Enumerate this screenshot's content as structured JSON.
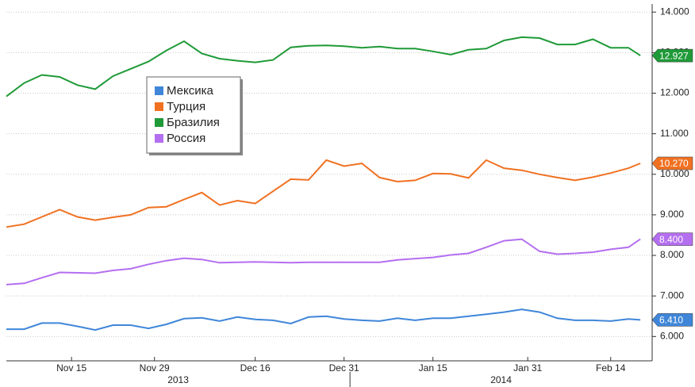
{
  "chart_data": {
    "type": "line",
    "xlim": [
      "2013-11-04",
      "2014-02-21"
    ],
    "ylim": [
      5.4,
      14.2
    ],
    "yticks": [
      {
        "value": 6,
        "label": "6.000"
      },
      {
        "value": 7,
        "label": "7.000"
      },
      {
        "value": 8,
        "label": "8.000"
      },
      {
        "value": 9,
        "label": "9.000"
      },
      {
        "value": 10,
        "label": "10.000"
      },
      {
        "value": 11,
        "label": "11.000"
      },
      {
        "value": 12,
        "label": "12.000"
      },
      {
        "value": 13,
        "label": "13.000"
      },
      {
        "value": 14,
        "label": "14.000"
      }
    ],
    "xticks": [
      {
        "value": "2013-11-15",
        "label": "Nov 15"
      },
      {
        "value": "2013-11-29",
        "label": "Nov 29"
      },
      {
        "value": "2013-12-16",
        "label": "Dec 16"
      },
      {
        "value": "2013-12-31",
        "label": "Dec 31"
      },
      {
        "value": "2014-01-15",
        "label": "Jan 15"
      },
      {
        "value": "2014-01-31",
        "label": "Jan 31"
      },
      {
        "value": "2014-02-14",
        "label": "Feb 14"
      }
    ],
    "x_groups": [
      {
        "label": "2013"
      },
      {
        "label": "2014"
      }
    ],
    "grid": true,
    "legend": "upper left",
    "x": [
      "2013-11-04",
      "2013-11-07",
      "2013-11-10",
      "2013-11-13",
      "2013-11-16",
      "2013-11-19",
      "2013-11-22",
      "2013-11-25",
      "2013-11-28",
      "2013-12-01",
      "2013-12-04",
      "2013-12-07",
      "2013-12-10",
      "2013-12-13",
      "2013-12-16",
      "2013-12-19",
      "2013-12-22",
      "2013-12-25",
      "2013-12-28",
      "2013-12-31",
      "2014-01-03",
      "2014-01-06",
      "2014-01-09",
      "2014-01-12",
      "2014-01-15",
      "2014-01-18",
      "2014-01-21",
      "2014-01-24",
      "2014-01-27",
      "2014-01-30",
      "2014-02-02",
      "2014-02-05",
      "2014-02-08",
      "2014-02-11",
      "2014-02-14",
      "2014-02-17",
      "2014-02-19"
    ],
    "series": [
      {
        "name": "Мексика",
        "color": "#3f86d9",
        "values": [
          6.18,
          6.18,
          6.33,
          6.33,
          6.25,
          6.16,
          6.28,
          6.28,
          6.2,
          6.3,
          6.44,
          6.46,
          6.38,
          6.48,
          6.42,
          6.4,
          6.32,
          6.48,
          6.5,
          6.43,
          6.4,
          6.38,
          6.45,
          6.4,
          6.45,
          6.45,
          6.5,
          6.55,
          6.6,
          6.67,
          6.6,
          6.45,
          6.4,
          6.4,
          6.38,
          6.43,
          6.41
        ],
        "value_labels": [
          null,
          null,
          null,
          null,
          null,
          null,
          null,
          null,
          null,
          null,
          null,
          null,
          null,
          null,
          null,
          null,
          null,
          null,
          null,
          null,
          null,
          null,
          null,
          null,
          null,
          null,
          null,
          null,
          null,
          null,
          null,
          null,
          null,
          null,
          null,
          null,
          "6.410"
        ]
      },
      {
        "name": "Турция",
        "color": "#f07122",
        "values": [
          8.7,
          8.77,
          8.95,
          9.13,
          8.95,
          8.87,
          8.94,
          9.0,
          9.18,
          9.2,
          9.38,
          9.55,
          9.24,
          9.35,
          9.28,
          9.58,
          9.88,
          9.86,
          10.35,
          10.2,
          10.27,
          9.92,
          9.82,
          9.85,
          10.02,
          10.01,
          9.91,
          10.35,
          10.15,
          10.1,
          10.0,
          9.92,
          9.85,
          9.93,
          10.03,
          10.15,
          10.27
        ],
        "value_labels": [
          null,
          null,
          null,
          null,
          null,
          null,
          null,
          null,
          null,
          null,
          null,
          null,
          null,
          null,
          null,
          null,
          null,
          null,
          null,
          null,
          null,
          null,
          null,
          null,
          null,
          null,
          null,
          null,
          null,
          null,
          null,
          null,
          null,
          null,
          null,
          null,
          "10.270"
        ]
      },
      {
        "name": "Бразилия",
        "color": "#1f9a38",
        "values": [
          11.92,
          12.25,
          12.45,
          12.4,
          12.2,
          12.1,
          12.42,
          12.6,
          12.78,
          13.05,
          13.28,
          12.98,
          12.85,
          12.8,
          12.76,
          12.82,
          13.13,
          13.17,
          13.18,
          13.16,
          13.12,
          13.15,
          13.1,
          13.1,
          13.03,
          12.95,
          13.07,
          13.1,
          13.3,
          13.38,
          13.36,
          13.2,
          13.2,
          13.33,
          13.12,
          13.12,
          12.927
        ],
        "value_labels": [
          null,
          null,
          null,
          null,
          null,
          null,
          null,
          null,
          null,
          null,
          null,
          null,
          null,
          null,
          null,
          null,
          null,
          null,
          null,
          null,
          null,
          null,
          null,
          null,
          null,
          null,
          null,
          null,
          null,
          null,
          null,
          null,
          null,
          null,
          null,
          null,
          "12.927"
        ]
      },
      {
        "name": "Россия",
        "color": "#b46ef0",
        "values": [
          7.28,
          7.31,
          7.45,
          7.58,
          7.57,
          7.56,
          7.63,
          7.67,
          7.78,
          7.87,
          7.93,
          7.9,
          7.82,
          7.83,
          7.84,
          7.83,
          7.82,
          7.83,
          7.83,
          7.83,
          7.83,
          7.83,
          7.89,
          7.92,
          7.95,
          8.01,
          8.05,
          8.2,
          8.36,
          8.4,
          8.1,
          8.03,
          8.05,
          8.08,
          8.15,
          8.2,
          8.4
        ],
        "value_labels": [
          null,
          null,
          null,
          null,
          null,
          null,
          null,
          null,
          null,
          null,
          null,
          null,
          null,
          null,
          null,
          null,
          null,
          null,
          null,
          null,
          null,
          null,
          null,
          null,
          null,
          null,
          null,
          null,
          null,
          null,
          null,
          null,
          null,
          null,
          null,
          null,
          "8.400"
        ]
      }
    ]
  }
}
